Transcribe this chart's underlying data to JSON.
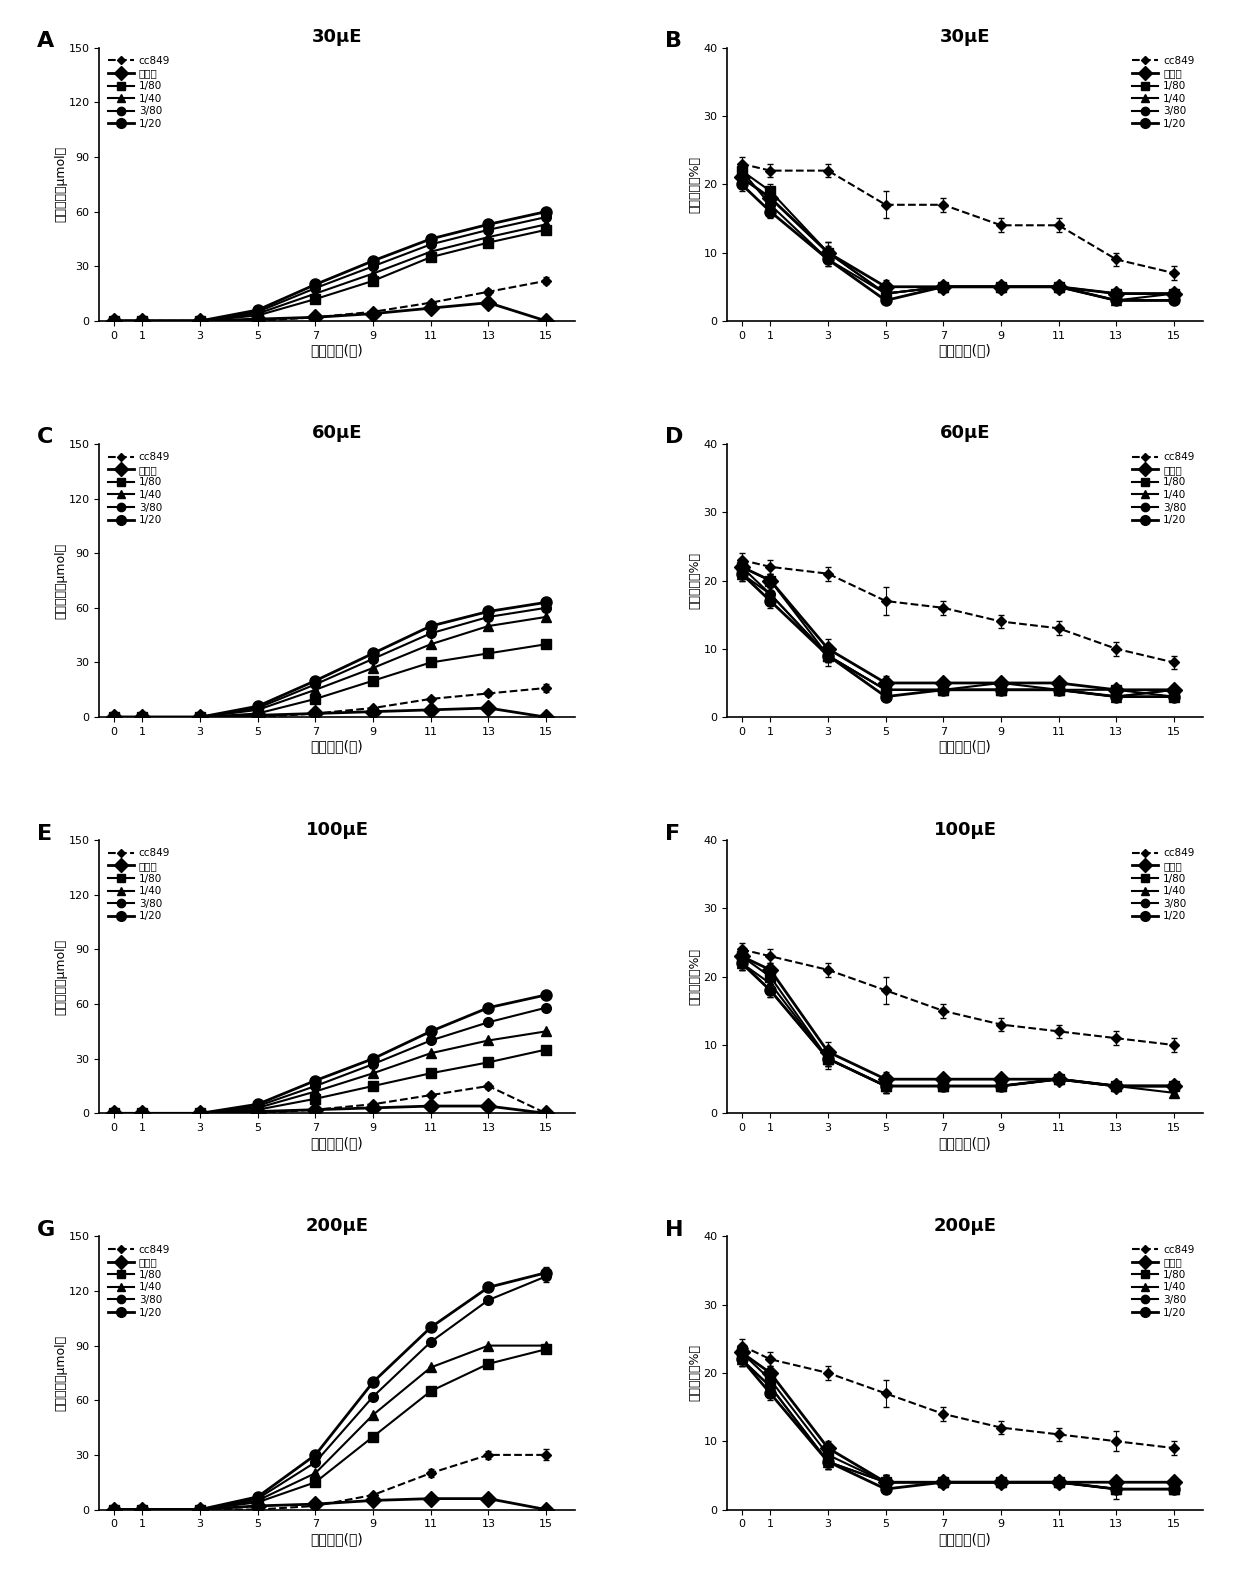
{
  "x": [
    0,
    1,
    3,
    5,
    7,
    9,
    11,
    13,
    15
  ],
  "panels": {
    "A": {
      "title": "30μE",
      "ylabel": "氢气产量（μmol）",
      "xlabel": "培山时间(天)",
      "ylim": [
        0,
        150
      ],
      "yticks": [
        0,
        30,
        60,
        90,
        120,
        150
      ],
      "series": {
        "cc849": [
          0,
          0,
          0,
          0,
          2,
          5,
          10,
          16,
          22
        ],
        "固氯菌": [
          0,
          0,
          0,
          1,
          2,
          4,
          7,
          10,
          0
        ],
        "1/80": [
          0,
          0,
          0,
          3,
          12,
          22,
          35,
          43,
          50
        ],
        "1/40": [
          0,
          0,
          0,
          4,
          15,
          26,
          38,
          46,
          53
        ],
        "3/80": [
          0,
          0,
          0,
          5,
          18,
          30,
          42,
          50,
          57
        ],
        "1/20": [
          0,
          0,
          0,
          6,
          20,
          33,
          45,
          53,
          60
        ]
      },
      "errorbar": {
        "cc849": [
          0,
          0,
          0,
          0,
          0,
          0.5,
          1,
          1.5,
          2
        ],
        "固氯菌": [
          0,
          0,
          0,
          0,
          0,
          0,
          0,
          0,
          0
        ],
        "1/80": [
          0,
          0,
          0,
          0,
          0,
          0,
          0,
          0,
          0
        ],
        "1/40": [
          0,
          0,
          0,
          0,
          0,
          0,
          0,
          0,
          0
        ],
        "3/80": [
          0,
          0,
          0,
          0,
          0,
          0,
          0,
          0,
          0
        ],
        "1/20": [
          0,
          0,
          0,
          0,
          0,
          0,
          0,
          0,
          0
        ]
      }
    },
    "B": {
      "title": "30μE",
      "ylabel": "氢气占量（%）",
      "xlabel": "培山时间(天)",
      "ylim": [
        0,
        40
      ],
      "yticks": [
        0,
        10,
        20,
        30,
        40
      ],
      "series": {
        "cc849": [
          23,
          22,
          22,
          17,
          17,
          14,
          14,
          9,
          7
        ],
        "固氯菌": [
          21,
          18,
          10,
          5,
          5,
          5,
          5,
          4,
          4
        ],
        "1/80": [
          22,
          19,
          10,
          4,
          5,
          5,
          5,
          4,
          4
        ],
        "1/40": [
          21,
          18,
          10,
          4,
          5,
          5,
          5,
          3,
          4
        ],
        "3/80": [
          22,
          17,
          9,
          4,
          5,
          5,
          5,
          3,
          3
        ],
        "1/20": [
          20,
          16,
          9,
          3,
          5,
          5,
          5,
          3,
          3
        ]
      },
      "errorbar": {
        "cc849": [
          1,
          1,
          1,
          2,
          1,
          1,
          1,
          1,
          1
        ],
        "固氯菌": [
          1,
          1,
          1.5,
          1,
          0.5,
          0.5,
          0.5,
          0.5,
          0.5
        ],
        "1/80": [
          1,
          1,
          1.5,
          1,
          0.5,
          0.5,
          0.5,
          0.5,
          0.5
        ],
        "1/40": [
          1,
          1,
          1,
          1,
          0.5,
          0.5,
          0.5,
          0.5,
          0.5
        ],
        "3/80": [
          1,
          1,
          1,
          1,
          0.5,
          0.5,
          0.5,
          0.5,
          0.5
        ],
        "1/20": [
          1,
          1,
          1,
          0.5,
          0.5,
          0.5,
          0.5,
          0.5,
          0.5
        ]
      }
    },
    "C": {
      "title": "60μE",
      "ylabel": "氢气产量（μmol）",
      "xlabel": "培山时间(天)",
      "ylim": [
        0,
        150
      ],
      "yticks": [
        0,
        30,
        60,
        90,
        120,
        150
      ],
      "series": {
        "cc849": [
          0,
          0,
          0,
          0,
          2,
          5,
          10,
          13,
          16
        ],
        "固氯菌": [
          0,
          0,
          0,
          1,
          2,
          3,
          4,
          5,
          0
        ],
        "1/80": [
          0,
          0,
          0,
          2,
          10,
          20,
          30,
          35,
          40
        ],
        "1/40": [
          0,
          0,
          0,
          4,
          15,
          27,
          40,
          50,
          55
        ],
        "3/80": [
          0,
          0,
          0,
          5,
          18,
          32,
          46,
          55,
          60
        ],
        "1/20": [
          0,
          0,
          0,
          6,
          20,
          35,
          50,
          58,
          63
        ]
      },
      "errorbar": {
        "cc849": [
          0,
          0,
          0,
          0,
          0,
          0.5,
          1,
          1.5,
          2
        ],
        "固氯菌": [
          0,
          0,
          0,
          0,
          0,
          0,
          0,
          0,
          0
        ],
        "1/80": [
          0,
          0,
          0,
          0,
          0,
          0,
          0,
          0,
          0
        ],
        "1/40": [
          0,
          0,
          0,
          0,
          0,
          0,
          0,
          0,
          0
        ],
        "3/80": [
          0,
          0,
          0,
          0,
          0,
          0,
          0,
          0,
          0
        ],
        "1/20": [
          0,
          0,
          0,
          0,
          0,
          0,
          0,
          0,
          0
        ]
      }
    },
    "D": {
      "title": "60μE",
      "ylabel": "氢气占量（%）",
      "xlabel": "培山时间(天)",
      "ylim": [
        0,
        40
      ],
      "yticks": [
        0,
        10,
        20,
        30,
        40
      ],
      "series": {
        "cc849": [
          23,
          22,
          21,
          17,
          16,
          14,
          13,
          10,
          8
        ],
        "固氯菌": [
          22,
          20,
          10,
          5,
          5,
          5,
          5,
          4,
          4
        ],
        "1/80": [
          22,
          20,
          9,
          4,
          4,
          4,
          4,
          4,
          3
        ],
        "1/40": [
          21,
          18,
          9,
          4,
          4,
          4,
          4,
          3,
          4
        ],
        "3/80": [
          22,
          18,
          9,
          4,
          4,
          5,
          4,
          3,
          4
        ],
        "1/20": [
          21,
          17,
          9,
          3,
          4,
          4,
          4,
          3,
          3
        ]
      },
      "errorbar": {
        "cc849": [
          1,
          1,
          1,
          2,
          1,
          1,
          1,
          1,
          1
        ],
        "固氯菌": [
          1,
          1,
          1.5,
          1,
          0.5,
          0.5,
          0.5,
          0.5,
          0.5
        ],
        "1/80": [
          1,
          1,
          1.5,
          1,
          0.5,
          0.5,
          0.5,
          0.5,
          0.5
        ],
        "1/40": [
          1,
          1,
          1,
          1,
          0.5,
          0.5,
          0.5,
          0.5,
          0.5
        ],
        "3/80": [
          1,
          1,
          1,
          1,
          0.5,
          0.5,
          0.5,
          0.5,
          0.5
        ],
        "1/20": [
          1,
          1,
          1,
          0.5,
          0.5,
          0.5,
          0.5,
          0.5,
          0.5
        ]
      }
    },
    "E": {
      "title": "100μE",
      "ylabel": "氢气产量（μmol）",
      "xlabel": "培山时间(天)",
      "ylim": [
        0,
        150
      ],
      "yticks": [
        0,
        30,
        60,
        90,
        120,
        150
      ],
      "series": {
        "cc849": [
          0,
          0,
          0,
          0,
          2,
          5,
          10,
          15,
          0
        ],
        "固氯菌": [
          0,
          0,
          0,
          1,
          2,
          3,
          4,
          4,
          0
        ],
        "1/80": [
          0,
          0,
          0,
          2,
          8,
          15,
          22,
          28,
          35
        ],
        "1/40": [
          0,
          0,
          0,
          3,
          12,
          22,
          33,
          40,
          45
        ],
        "3/80": [
          0,
          0,
          0,
          4,
          15,
          27,
          40,
          50,
          58
        ],
        "1/20": [
          0,
          0,
          0,
          5,
          18,
          30,
          45,
          58,
          65
        ]
      },
      "errorbar": {
        "cc849": [
          0,
          0,
          0,
          0,
          0,
          0.5,
          1,
          1.5,
          2
        ],
        "固氯菌": [
          0,
          0,
          0,
          0,
          0,
          0,
          0,
          0,
          0
        ],
        "1/80": [
          0,
          0,
          0,
          0,
          0,
          0,
          0,
          0,
          0
        ],
        "1/40": [
          0,
          0,
          0,
          0,
          0,
          0,
          0,
          0,
          0
        ],
        "3/80": [
          0,
          0,
          0,
          0,
          0,
          0,
          0,
          0,
          0
        ],
        "1/20": [
          0,
          0,
          0,
          0,
          0,
          0,
          0,
          0,
          0
        ]
      }
    },
    "F": {
      "title": "100μE",
      "ylabel": "氢气占量（%）",
      "xlabel": "培山时间(天)",
      "ylim": [
        0,
        40
      ],
      "yticks": [
        0,
        10,
        20,
        30,
        40
      ],
      "series": {
        "cc849": [
          24,
          23,
          21,
          18,
          15,
          13,
          12,
          11,
          10
        ],
        "固氯菌": [
          23,
          21,
          9,
          5,
          5,
          5,
          5,
          4,
          4
        ],
        "1/80": [
          23,
          20,
          8,
          4,
          4,
          4,
          5,
          4,
          4
        ],
        "1/40": [
          22,
          19,
          8,
          4,
          4,
          4,
          5,
          4,
          3
        ],
        "3/80": [
          22,
          18,
          8,
          4,
          4,
          4,
          5,
          4,
          4
        ],
        "1/20": [
          22,
          18,
          8,
          4,
          4,
          4,
          5,
          4,
          4
        ]
      },
      "errorbar": {
        "cc849": [
          1,
          1,
          1,
          2,
          1,
          1,
          1,
          1,
          1
        ],
        "固氯菌": [
          1,
          1,
          1.5,
          1,
          0.5,
          0.5,
          0.5,
          0.5,
          0.5
        ],
        "1/80": [
          1,
          1,
          1.5,
          1,
          0.5,
          0.5,
          0.5,
          0.5,
          0.5
        ],
        "1/40": [
          1,
          1,
          1,
          1,
          0.5,
          0.5,
          0.5,
          0.5,
          0.5
        ],
        "3/80": [
          1,
          1,
          1,
          1,
          0.5,
          0.5,
          0.5,
          0.5,
          0.5
        ],
        "1/20": [
          1,
          1,
          1,
          0.5,
          0.5,
          0.5,
          0.5,
          0.5,
          0.5
        ]
      }
    },
    "G": {
      "title": "200μE",
      "ylabel": "氢气产量（μmol）",
      "xlabel": "培山时间(天)",
      "ylim": [
        0,
        150
      ],
      "yticks": [
        0,
        30,
        60,
        90,
        120,
        150
      ],
      "series": {
        "cc849": [
          0,
          0,
          0,
          0,
          2,
          8,
          20,
          30,
          30
        ],
        "固氯菌": [
          0,
          0,
          0,
          2,
          3,
          5,
          6,
          6,
          0
        ],
        "1/80": [
          0,
          0,
          0,
          4,
          15,
          40,
          65,
          80,
          88
        ],
        "1/40": [
          0,
          0,
          0,
          5,
          20,
          52,
          78,
          90,
          90
        ],
        "3/80": [
          0,
          0,
          0,
          6,
          26,
          62,
          92,
          115,
          128
        ],
        "1/20": [
          0,
          0,
          0,
          7,
          30,
          70,
          100,
          122,
          130
        ]
      },
      "errorbar": {
        "cc849": [
          0,
          0,
          0,
          0,
          0,
          1,
          2,
          2,
          3
        ],
        "固氯菌": [
          0,
          0,
          0,
          0,
          0,
          0,
          0,
          0,
          0
        ],
        "1/80": [
          0,
          0,
          0,
          0,
          0,
          0,
          0,
          0,
          0
        ],
        "1/40": [
          0,
          0,
          0,
          0,
          0,
          0,
          0,
          0,
          0
        ],
        "3/80": [
          0,
          0,
          0,
          0,
          0,
          0,
          0,
          0,
          3
        ],
        "1/20": [
          0,
          0,
          0,
          0,
          0,
          0,
          0,
          0,
          3
        ]
      }
    },
    "H": {
      "title": "200μE",
      "ylabel": "氢气占量（%）",
      "xlabel": "培山时间(天)",
      "ylim": [
        0,
        40
      ],
      "yticks": [
        0,
        10,
        20,
        30,
        40
      ],
      "series": {
        "cc849": [
          24,
          22,
          20,
          17,
          14,
          12,
          11,
          10,
          9
        ],
        "固氯菌": [
          23,
          20,
          9,
          4,
          4,
          4,
          4,
          4,
          4
        ],
        "1/80": [
          23,
          19,
          8,
          4,
          4,
          4,
          4,
          3,
          3
        ],
        "1/40": [
          22,
          18,
          7,
          4,
          4,
          4,
          4,
          3,
          3
        ],
        "3/80": [
          22,
          18,
          7,
          4,
          4,
          4,
          4,
          3,
          3
        ],
        "1/20": [
          22,
          17,
          7,
          3,
          4,
          4,
          4,
          3,
          3
        ]
      },
      "errorbar": {
        "cc849": [
          1,
          1,
          1,
          2,
          1,
          1,
          1,
          1.5,
          1
        ],
        "固氯菌": [
          1,
          1,
          1,
          1,
          0.5,
          0.5,
          0.5,
          0.5,
          0.5
        ],
        "1/80": [
          1,
          1,
          1,
          1,
          0.5,
          0.5,
          0.5,
          0.5,
          0.5
        ],
        "1/40": [
          1,
          1,
          1,
          1,
          0.5,
          0.5,
          0.5,
          0.5,
          0.5
        ],
        "3/80": [
          1,
          1,
          1,
          1,
          0.5,
          0.5,
          0.5,
          1.5,
          0.5
        ],
        "1/20": [
          1,
          1,
          1,
          0.5,
          0.5,
          0.5,
          0.5,
          0.5,
          0.5
        ]
      }
    }
  },
  "legend_labels": [
    "cc849",
    "固氯菌",
    "1/80",
    "1/40",
    "3/80",
    "1/20"
  ],
  "series_styles": {
    "cc849": {
      "linestyle": "dashed",
      "marker": "D",
      "color": "black",
      "linewidth": 1.5,
      "markersize": 5
    },
    "固氯菌": {
      "linestyle": "solid",
      "marker": "D",
      "color": "black",
      "linewidth": 2.0,
      "markersize": 8
    },
    "1/80": {
      "linestyle": "solid",
      "marker": "s",
      "color": "black",
      "linewidth": 1.5,
      "markersize": 7
    },
    "1/40": {
      "linestyle": "solid",
      "marker": "^",
      "color": "black",
      "linewidth": 1.5,
      "markersize": 7
    },
    "3/80": {
      "linestyle": "solid",
      "marker": "o",
      "color": "black",
      "linewidth": 1.5,
      "markersize": 7
    },
    "1/20": {
      "linestyle": "solid",
      "marker": "o",
      "color": "black",
      "linewidth": 2.0,
      "markersize": 8
    }
  },
  "figsize": [
    12.4,
    15.89
  ],
  "dpi": 100
}
